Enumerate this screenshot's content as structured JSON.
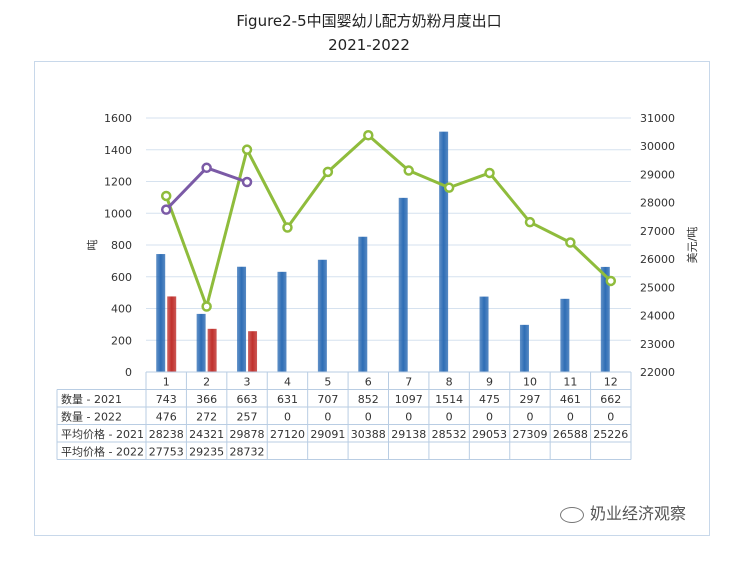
{
  "chart_data": {
    "type": "bar+line",
    "title": "Figure2-5中国婴幼儿配方奶粉月度出口",
    "subtitle": "2021-2022",
    "categories": [
      "1",
      "2",
      "3",
      "4",
      "5",
      "6",
      "7",
      "8",
      "9",
      "10",
      "11",
      "12"
    ],
    "ylabel_left": "吨",
    "ylabel_right": "美元/吨",
    "ylim_left": [
      0,
      1600
    ],
    "yticks_left": [
      0,
      200,
      400,
      600,
      800,
      1000,
      1200,
      1400,
      1600
    ],
    "ylim_right": [
      22000,
      31000
    ],
    "yticks_right": [
      22000,
      23000,
      24000,
      25000,
      26000,
      27000,
      28000,
      29000,
      30000,
      31000
    ],
    "grid": true,
    "bar_series": [
      {
        "name": "数量 - 2021",
        "color": "#2e6db5",
        "values": [
          743,
          366,
          663,
          631,
          707,
          852,
          1097,
          1514,
          475,
          297,
          461,
          662
        ]
      },
      {
        "name": "数量 - 2022",
        "color": "#c0302c",
        "values": [
          476,
          272,
          257,
          0,
          0,
          0,
          0,
          0,
          0,
          0,
          0,
          0
        ]
      }
    ],
    "line_series": [
      {
        "name": "平均价格 - 2021",
        "color": "#8fbc3c",
        "values": [
          28238,
          24321,
          29878,
          27120,
          29091,
          30388,
          29138,
          28532,
          29053,
          27309,
          26588,
          25226
        ]
      },
      {
        "name": "平均价格 - 2022",
        "color": "#7b5aa6",
        "values": [
          27753,
          29235,
          28732
        ]
      }
    ]
  },
  "watermark": "奶业经济观察"
}
